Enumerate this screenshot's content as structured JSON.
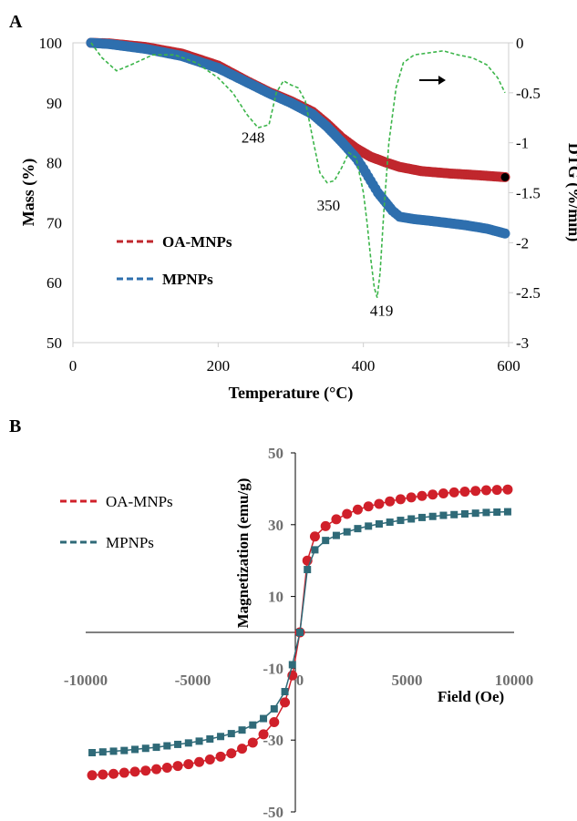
{
  "chart_data": [
    {
      "panel_label": "A",
      "type": "line",
      "xlabel": "Temperature (°C)",
      "ylabel": "Mass (%)",
      "y2label": "DTG (%/min)",
      "xlim": [
        0,
        600
      ],
      "ylim": [
        50,
        100
      ],
      "y2lim": [
        -3,
        0
      ],
      "xticks": [
        "0",
        "200",
        "400",
        "600"
      ],
      "yticks": [
        "50",
        "60",
        "70",
        "80",
        "90",
        "100"
      ],
      "y2ticks": [
        "-3",
        "-2.5",
        "-2",
        "-1.5",
        "-1",
        "-0.5",
        "0"
      ],
      "legend_position": "lower-left",
      "series": [
        {
          "name": "OA-MNPs",
          "axis": "left",
          "color": "#c0272d",
          "x": [
            25,
            50,
            100,
            150,
            200,
            240,
            270,
            300,
            330,
            350,
            370,
            390,
            410,
            430,
            450,
            480,
            520,
            560,
            595
          ],
          "y": [
            100,
            99.9,
            99.3,
            98.2,
            96.2,
            93.6,
            91.8,
            90.3,
            88.5,
            86.5,
            84.2,
            82.4,
            81.0,
            80.1,
            79.3,
            78.6,
            78.2,
            77.9,
            77.6
          ]
        },
        {
          "name": "MPNPs",
          "axis": "left",
          "color": "#2e6fae",
          "x": [
            25,
            50,
            100,
            150,
            200,
            240,
            270,
            300,
            330,
            350,
            370,
            390,
            400,
            410,
            420,
            440,
            450,
            470,
            500,
            540,
            570,
            595
          ],
          "y": [
            100,
            99.8,
            99.0,
            97.8,
            95.8,
            93.4,
            91.6,
            90.0,
            88.1,
            86.0,
            83.5,
            80.8,
            79.0,
            77.0,
            75.0,
            72.0,
            71.0,
            70.6,
            70.2,
            69.6,
            69.0,
            68.2
          ]
        },
        {
          "name": "DTG",
          "axis": "right",
          "color": "#3cb54a",
          "dashed": true,
          "x": [
            25,
            40,
            60,
            80,
            110,
            140,
            170,
            200,
            220,
            240,
            255,
            270,
            280,
            290,
            300,
            310,
            320,
            330,
            340,
            350,
            360,
            370,
            380,
            390,
            400,
            405,
            410,
            415,
            419,
            423,
            428,
            435,
            445,
            455,
            470,
            490,
            510,
            530,
            550,
            570,
            585,
            595
          ],
          "y": [
            0,
            -0.15,
            -0.28,
            -0.22,
            -0.12,
            -0.12,
            -0.2,
            -0.35,
            -0.5,
            -0.72,
            -0.85,
            -0.82,
            -0.5,
            -0.38,
            -0.42,
            -0.45,
            -0.58,
            -0.95,
            -1.3,
            -1.4,
            -1.38,
            -1.25,
            -1.1,
            -1.15,
            -1.5,
            -1.8,
            -2.15,
            -2.45,
            -2.55,
            -2.3,
            -1.7,
            -1.0,
            -0.45,
            -0.2,
            -0.12,
            -0.1,
            -0.08,
            -0.12,
            -0.15,
            -0.22,
            -0.35,
            -0.5
          ]
        }
      ],
      "annotations": [
        {
          "text": "248",
          "x": 248,
          "y2": -1.0
        },
        {
          "text": "350",
          "x": 352,
          "y2": -1.68
        },
        {
          "text": "419",
          "x": 425,
          "y2": -2.73
        }
      ]
    },
    {
      "panel_label": "B",
      "type": "scatter",
      "xlabel": "Field (Oe)",
      "ylabel": "Magnetization (emu/g)",
      "xlim": [
        -10000,
        10000
      ],
      "ylim": [
        -50,
        50
      ],
      "xticks": [
        "-10000",
        "-5000",
        "0",
        "5000",
        "10000"
      ],
      "yticks": [
        "-50",
        "-30",
        "-10",
        "10",
        "30",
        "50"
      ],
      "legend_position": "top-left",
      "series": [
        {
          "name": "OA-MNPs",
          "color": "#d0202a",
          "marker": "circle",
          "x": [
            -9700,
            -9200,
            -8700,
            -8200,
            -7700,
            -7200,
            -6700,
            -6200,
            -5700,
            -5200,
            -4700,
            -4200,
            -3700,
            -3200,
            -2700,
            -2200,
            -1700,
            -1200,
            -700,
            -350,
            0,
            350,
            700,
            1200,
            1700,
            2200,
            2700,
            3200,
            3700,
            4200,
            4700,
            5200,
            5700,
            6200,
            6700,
            7200,
            7700,
            8200,
            8700,
            9200,
            9700
          ],
          "y": [
            -39.8,
            -39.6,
            -39.4,
            -39.1,
            -38.8,
            -38.5,
            -38.1,
            -37.7,
            -37.2,
            -36.7,
            -36.1,
            -35.4,
            -34.6,
            -33.7,
            -32.4,
            -30.7,
            -28.4,
            -25.0,
            -19.5,
            -12.0,
            0,
            20.0,
            26.7,
            29.6,
            31.5,
            33.0,
            34.2,
            35.1,
            35.8,
            36.5,
            37.1,
            37.6,
            38.0,
            38.4,
            38.7,
            39.0,
            39.2,
            39.4,
            39.6,
            39.7,
            39.8
          ]
        },
        {
          "name": "MPNPs",
          "color": "#2f6a78",
          "marker": "square",
          "x": [
            -9700,
            -9200,
            -8700,
            -8200,
            -7700,
            -7200,
            -6700,
            -6200,
            -5700,
            -5200,
            -4700,
            -4200,
            -3700,
            -3200,
            -2700,
            -2200,
            -1700,
            -1200,
            -700,
            -350,
            0,
            350,
            700,
            1200,
            1700,
            2200,
            2700,
            3200,
            3700,
            4200,
            4700,
            5200,
            5700,
            6200,
            6700,
            7200,
            7700,
            8200,
            8700,
            9200,
            9700
          ],
          "y": [
            -33.5,
            -33.3,
            -33.1,
            -32.9,
            -32.6,
            -32.3,
            -32.0,
            -31.6,
            -31.2,
            -30.8,
            -30.3,
            -29.7,
            -29.0,
            -28.2,
            -27.2,
            -25.8,
            -24.0,
            -21.3,
            -16.5,
            -9.0,
            0,
            17.5,
            23.0,
            25.6,
            27.0,
            28.0,
            28.9,
            29.6,
            30.2,
            30.7,
            31.2,
            31.6,
            32.0,
            32.3,
            32.6,
            32.8,
            33.0,
            33.2,
            33.4,
            33.5,
            33.6
          ]
        }
      ]
    }
  ]
}
